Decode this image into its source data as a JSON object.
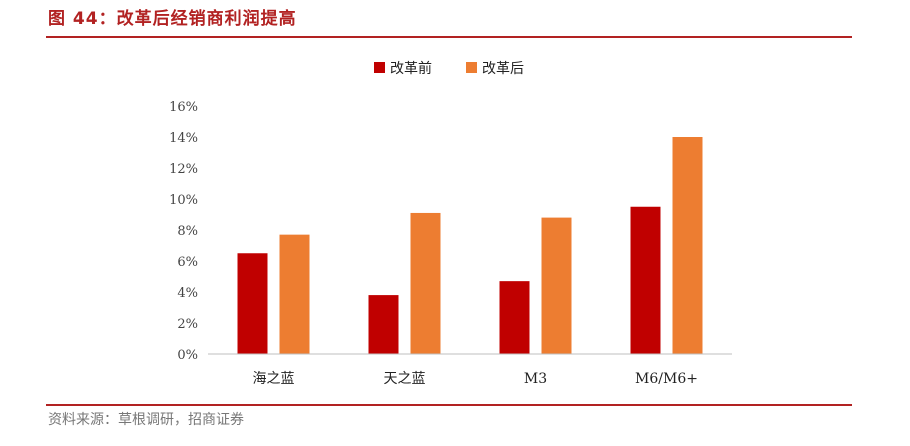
{
  "header": {
    "title": "图 44：改革后经销商利润提高"
  },
  "footer": {
    "source": "资料来源：草根调研，招商证券"
  },
  "colors": {
    "accent": "#b22222",
    "series_before": "#c00000",
    "series_after": "#ed7d31"
  },
  "chart_data": {
    "type": "bar",
    "title": "",
    "xlabel": "",
    "ylabel": "",
    "categories": [
      "海之蓝",
      "天之蓝",
      "M3",
      "M6/M6+"
    ],
    "series": [
      {
        "name": "改革前",
        "values": [
          6.5,
          3.8,
          4.7,
          9.5
        ]
      },
      {
        "name": "改革后",
        "values": [
          7.7,
          9.1,
          8.8,
          14.0
        ]
      }
    ],
    "ylim": [
      0,
      16
    ],
    "yticks": [
      "0%",
      "2%",
      "4%",
      "6%",
      "8%",
      "10%",
      "12%",
      "14%",
      "16%"
    ],
    "unit": "%",
    "grid": false,
    "legend": "top-center"
  }
}
